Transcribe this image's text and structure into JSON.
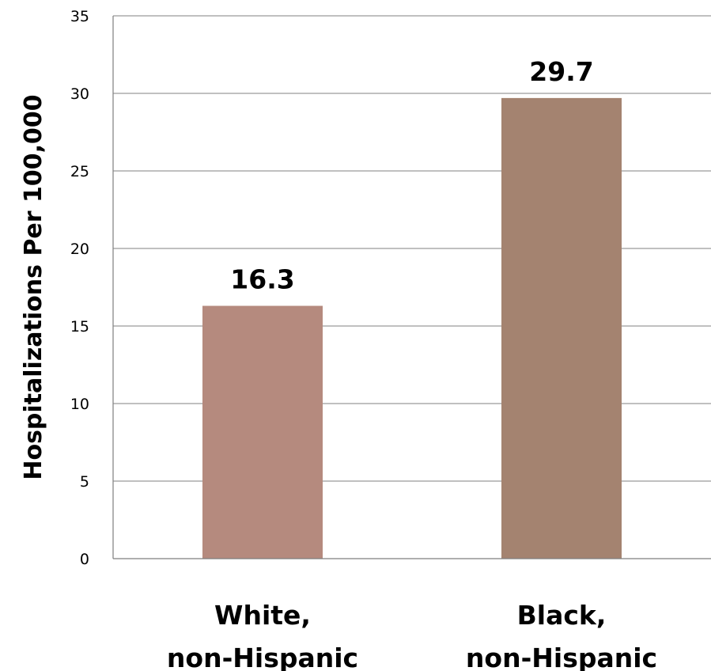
{
  "chart_data": {
    "type": "bar",
    "categories": [
      [
        "White,",
        "non-Hispanic"
      ],
      [
        "Black,",
        "non-Hispanic"
      ]
    ],
    "values": [
      16.3,
      29.7
    ],
    "data_labels": [
      "16.3",
      "29.7"
    ],
    "bar_colors": [
      "#b58a7e",
      "#a48370"
    ],
    "ylabel": "Hospitalizations Per 100,000",
    "ylim": [
      0,
      35
    ],
    "yticks": [
      0,
      5,
      10,
      15,
      20,
      25,
      30,
      35
    ],
    "grid": true,
    "legend": false
  }
}
